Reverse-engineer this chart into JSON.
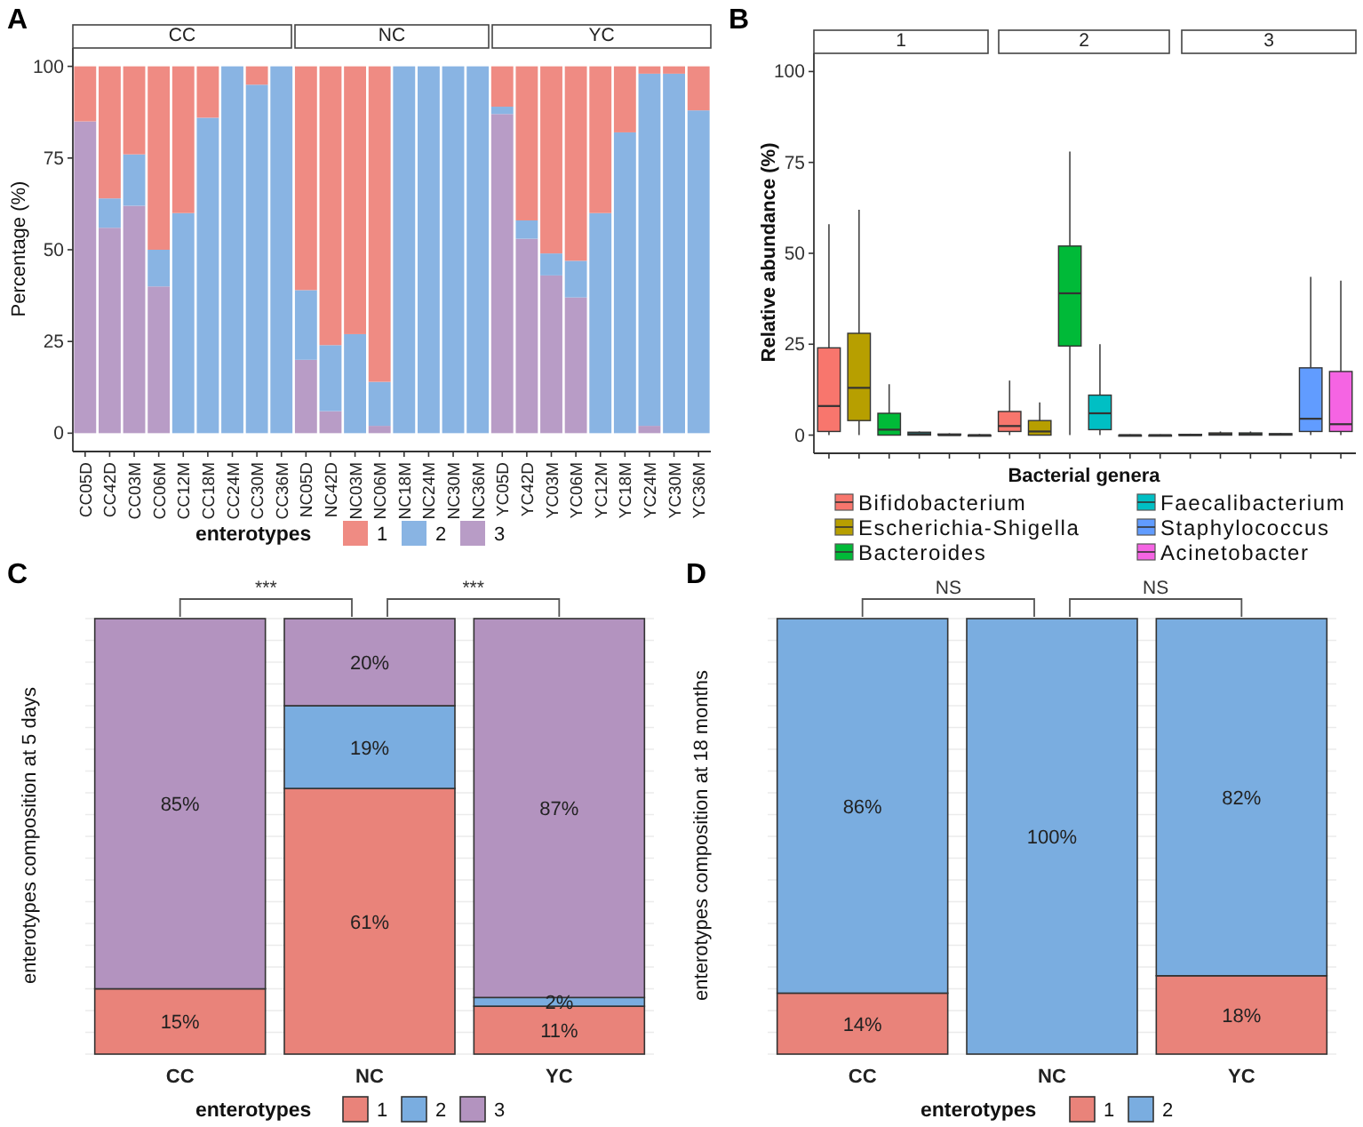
{
  "chart_data": [
    {
      "type": "bar",
      "stacked": true,
      "ylabel": "Percentage (%)",
      "legend_title": "enterotypes",
      "legend": "bottom",
      "annotations": [
        "A",
        "CC",
        "NC",
        "YC"
      ],
      "ylim": [
        -5,
        105
      ],
      "yticks": [
        0,
        25,
        50,
        75,
        100
      ],
      "categories": [
        "CC05D",
        "CC42D",
        "CC03M",
        "CC06M",
        "CC12M",
        "CC18M",
        "CC24M",
        "CC30M",
        "CC36M",
        "NC05D",
        "NC42D",
        "NC03M",
        "NC06M",
        "NC18M",
        "NC24M",
        "NC30M",
        "NC36M",
        "YC05D",
        "YC42D",
        "YC03M",
        "YC06M",
        "YC12M",
        "YC18M",
        "YC24M",
        "YC30M",
        "YC36M"
      ],
      "series": [
        {
          "name": "3",
          "color": "#b89cc6",
          "values": [
            85,
            56,
            62,
            40,
            0,
            0,
            0,
            0,
            0,
            20,
            6,
            0,
            2,
            0,
            0,
            0,
            0,
            87,
            53,
            43,
            37,
            0,
            0,
            2,
            0,
            0
          ]
        },
        {
          "name": "2",
          "color": "#89b4e3",
          "values": [
            0,
            8,
            14,
            10,
            60,
            86,
            100,
            95,
            100,
            19,
            18,
            27,
            12,
            100,
            100,
            100,
            100,
            2,
            5,
            6,
            10,
            60,
            82,
            96,
            98,
            88
          ]
        },
        {
          "name": "1",
          "color": "#ef8b83",
          "values": [
            15,
            36,
            24,
            50,
            40,
            14,
            0,
            5,
            0,
            61,
            76,
            73,
            86,
            0,
            0,
            0,
            0,
            11,
            42,
            51,
            53,
            40,
            18,
            2,
            2,
            12
          ]
        }
      ]
    },
    {
      "type": "box",
      "xlabel": "Bacterial genera",
      "ylabel": "Relative abundance (%)",
      "legend": "bottom",
      "annotations": [
        "B",
        "1",
        "2",
        "3"
      ],
      "ylim": [
        -5,
        105
      ],
      "yticks": [
        0,
        25,
        50,
        75,
        100
      ],
      "tick_labels": "y",
      "categories": [
        null,
        null,
        null,
        null,
        null,
        null,
        null,
        null,
        null,
        null,
        null,
        null,
        null,
        null,
        null,
        null,
        null,
        null
      ],
      "series": [
        {
          "name": "Bifidobacterium",
          "color": "#f8766d",
          "boxes": [
            {
              "low": 0,
              "q1": 1,
              "median": 8,
              "q3": 24,
              "high": 58
            },
            null,
            null,
            null,
            null,
            null,
            {
              "low": 0,
              "q1": 1,
              "median": 2.5,
              "q3": 6.5,
              "high": 15
            },
            null,
            null,
            null,
            null,
            null,
            {
              "low": 0,
              "q1": 0,
              "median": 0,
              "q3": 0.2,
              "high": 0.4
            },
            null,
            null,
            null,
            null,
            null
          ]
        },
        {
          "name": "Escherichia-Shigella",
          "color": "#b79f00",
          "boxes": [
            null,
            {
              "low": 0,
              "q1": 4,
              "median": 13,
              "q3": 28,
              "high": 62
            },
            null,
            null,
            null,
            null,
            null,
            {
              "low": 0,
              "q1": 0,
              "median": 1,
              "q3": 4,
              "high": 9
            },
            null,
            null,
            null,
            null,
            null,
            {
              "low": 0,
              "q1": 0,
              "median": 0.3,
              "q3": 0.6,
              "high": 1
            },
            null,
            null,
            null,
            null
          ]
        },
        {
          "name": "Bacteroides",
          "color": "#00ba38",
          "boxes": [
            null,
            null,
            {
              "low": 0,
              "q1": 0,
              "median": 1.5,
              "q3": 6,
              "high": 14
            },
            null,
            null,
            null,
            null,
            null,
            {
              "low": 0,
              "q1": 24.5,
              "median": 39,
              "q3": 52,
              "high": 78
            },
            null,
            null,
            null,
            null,
            null,
            {
              "low": 0,
              "q1": 0,
              "median": 0.3,
              "q3": 0.6,
              "high": 1
            },
            null,
            null,
            null
          ]
        },
        {
          "name": "Faecalibacterium",
          "color": "#00bfc4",
          "boxes": [
            null,
            null,
            null,
            {
              "low": 0,
              "q1": 0,
              "median": 0.3,
              "q3": 0.8,
              "high": 1
            },
            null,
            null,
            null,
            null,
            null,
            {
              "low": 0,
              "q1": 1.5,
              "median": 6,
              "q3": 11,
              "high": 25
            },
            null,
            null,
            null,
            null,
            null,
            {
              "low": 0,
              "q1": 0,
              "median": 0.2,
              "q3": 0.4,
              "high": 0.6
            },
            null,
            null
          ]
        },
        {
          "name": "Staphylococcus",
          "color": "#619cff",
          "boxes": [
            null,
            null,
            null,
            null,
            {
              "low": 0,
              "q1": 0,
              "median": 0,
              "q3": 0.3,
              "high": 0.5
            },
            null,
            null,
            null,
            null,
            null,
            {
              "low": 0,
              "q1": 0,
              "median": 0,
              "q3": 0,
              "high": 0.2
            },
            null,
            null,
            null,
            null,
            null,
            {
              "low": 0,
              "q1": 1,
              "median": 4.5,
              "q3": 18.5,
              "high": 43.5
            },
            null
          ]
        },
        {
          "name": "Acinetobacter",
          "color": "#f564e3",
          "boxes": [
            null,
            null,
            null,
            null,
            null,
            {
              "low": 0,
              "q1": 0,
              "median": 0,
              "q3": 0,
              "high": 0.3
            },
            null,
            null,
            null,
            null,
            null,
            {
              "low": 0,
              "q1": 0,
              "median": 0,
              "q3": 0,
              "high": 0.2
            },
            null,
            null,
            null,
            null,
            null,
            {
              "low": 0,
              "q1": 1,
              "median": 3,
              "q3": 17.5,
              "high": 42.5
            }
          ]
        }
      ]
    },
    {
      "type": "bar",
      "stacked": true,
      "ylabel": "enterotypes composition at 5 days",
      "legend_title": "enterotypes",
      "legend": "bottom",
      "annotations": [
        "C",
        "***",
        "***"
      ],
      "grid": "y",
      "tick_labels": "x",
      "ylim": [
        0,
        100
      ],
      "yticks": [
        {
          "value": 0,
          "label": null
        },
        {
          "value": 5,
          "label": null
        },
        {
          "value": 10,
          "label": null
        },
        {
          "value": 15,
          "label": null
        },
        {
          "value": 20,
          "label": null
        },
        {
          "value": 25,
          "label": null
        },
        {
          "value": 30,
          "label": null
        },
        {
          "value": 35,
          "label": null
        },
        {
          "value": 40,
          "label": null
        },
        {
          "value": 45,
          "label": null
        },
        {
          "value": 50,
          "label": null
        },
        {
          "value": 55,
          "label": null
        },
        {
          "value": 60,
          "label": null
        },
        {
          "value": 65,
          "label": null
        },
        {
          "value": 70,
          "label": null
        },
        {
          "value": 75,
          "label": null
        },
        {
          "value": 80,
          "label": null
        },
        {
          "value": 85,
          "label": null
        },
        {
          "value": 90,
          "label": null
        },
        {
          "value": 95,
          "label": null
        },
        {
          "value": 100,
          "label": null
        }
      ],
      "categories": [
        "CC",
        "NC",
        "YC"
      ],
      "series": [
        {
          "name": "1",
          "color": "#e9837a",
          "values": [
            15,
            61,
            11
          ],
          "value_labels": [
            "15%",
            "61%",
            "11%"
          ]
        },
        {
          "name": "2",
          "color": "#7aade0",
          "values": [
            0,
            19,
            2
          ],
          "value_labels": [
            null,
            "19%",
            "2%"
          ]
        },
        {
          "name": "3",
          "color": "#b393bf",
          "values": [
            85,
            20,
            87
          ],
          "value_labels": [
            "85%",
            "20%",
            "87%"
          ]
        }
      ]
    },
    {
      "type": "bar",
      "stacked": true,
      "ylabel": "enterotypes composition at 18 months",
      "legend_title": "enterotypes",
      "legend": "bottom",
      "annotations": [
        "D",
        "NS",
        "NS"
      ],
      "grid": "y",
      "tick_labels": "x",
      "ylim": [
        0,
        100
      ],
      "yticks": [
        {
          "value": 0,
          "label": null
        },
        {
          "value": 5,
          "label": null
        },
        {
          "value": 10,
          "label": null
        },
        {
          "value": 15,
          "label": null
        },
        {
          "value": 20,
          "label": null
        },
        {
          "value": 25,
          "label": null
        },
        {
          "value": 30,
          "label": null
        },
        {
          "value": 35,
          "label": null
        },
        {
          "value": 40,
          "label": null
        },
        {
          "value": 45,
          "label": null
        },
        {
          "value": 50,
          "label": null
        },
        {
          "value": 55,
          "label": null
        },
        {
          "value": 60,
          "label": null
        },
        {
          "value": 65,
          "label": null
        },
        {
          "value": 70,
          "label": null
        },
        {
          "value": 75,
          "label": null
        },
        {
          "value": 80,
          "label": null
        },
        {
          "value": 85,
          "label": null
        },
        {
          "value": 90,
          "label": null
        },
        {
          "value": 95,
          "label": null
        },
        {
          "value": 100,
          "label": null
        }
      ],
      "categories": [
        "CC",
        "NC",
        "YC"
      ],
      "series": [
        {
          "name": "1",
          "color": "#e9837a",
          "values": [
            14,
            0,
            18
          ],
          "value_labels": [
            "14%",
            null,
            "18%"
          ]
        },
        {
          "name": "2",
          "color": "#7aade0",
          "values": [
            86,
            100,
            82
          ],
          "value_labels": [
            "86%",
            "100%",
            "82%"
          ]
        }
      ]
    }
  ]
}
